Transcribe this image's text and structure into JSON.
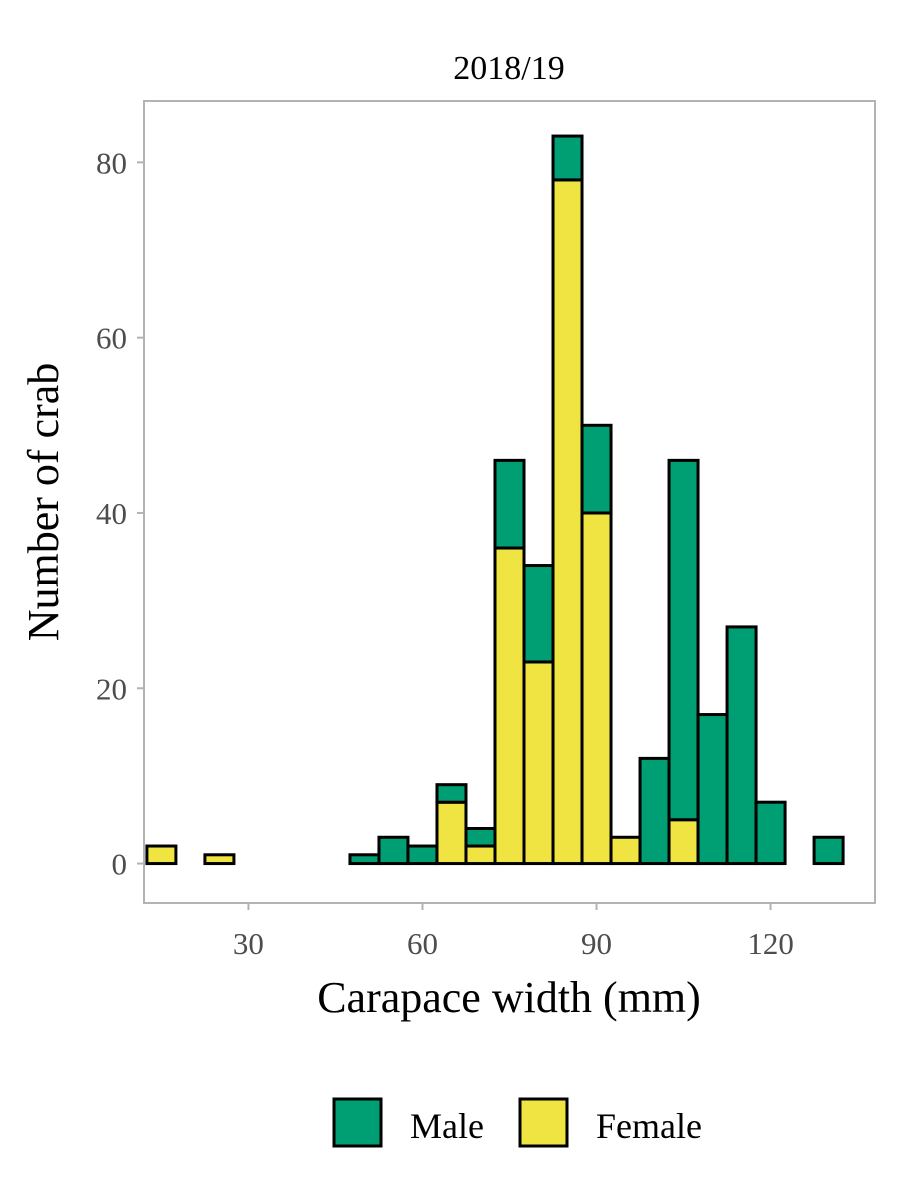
{
  "chart_data": {
    "type": "bar",
    "stacked": true,
    "title": "2018/19",
    "xlabel": "Carapace width (mm)",
    "ylabel": "Number of crab",
    "bin_width": 5,
    "x": [
      15,
      25,
      50,
      55,
      60,
      65,
      70,
      75,
      80,
      85,
      90,
      95,
      100,
      105,
      110,
      115,
      120,
      130
    ],
    "series": [
      {
        "name": "Female",
        "color": "#f0e442",
        "values": [
          2,
          1,
          0,
          0,
          0,
          7,
          2,
          36,
          23,
          78,
          40,
          3,
          0,
          5,
          0,
          0,
          0,
          0
        ]
      },
      {
        "name": "Male",
        "color": "#009e73",
        "values": [
          0,
          0,
          1,
          3,
          2,
          2,
          2,
          10,
          11,
          5,
          10,
          0,
          12,
          41,
          17,
          27,
          7,
          3
        ]
      }
    ],
    "xlim": [
      12,
      138
    ],
    "ylim": [
      -4.5,
      87
    ],
    "x_ticks": [
      30,
      60,
      90,
      120
    ],
    "y_ticks": [
      0,
      20,
      40,
      60,
      80
    ],
    "grid": false,
    "legend_position": "bottom"
  },
  "legend": {
    "items": [
      {
        "label": "Male",
        "color": "#009e73"
      },
      {
        "label": "Female",
        "color": "#f0e442"
      }
    ]
  }
}
